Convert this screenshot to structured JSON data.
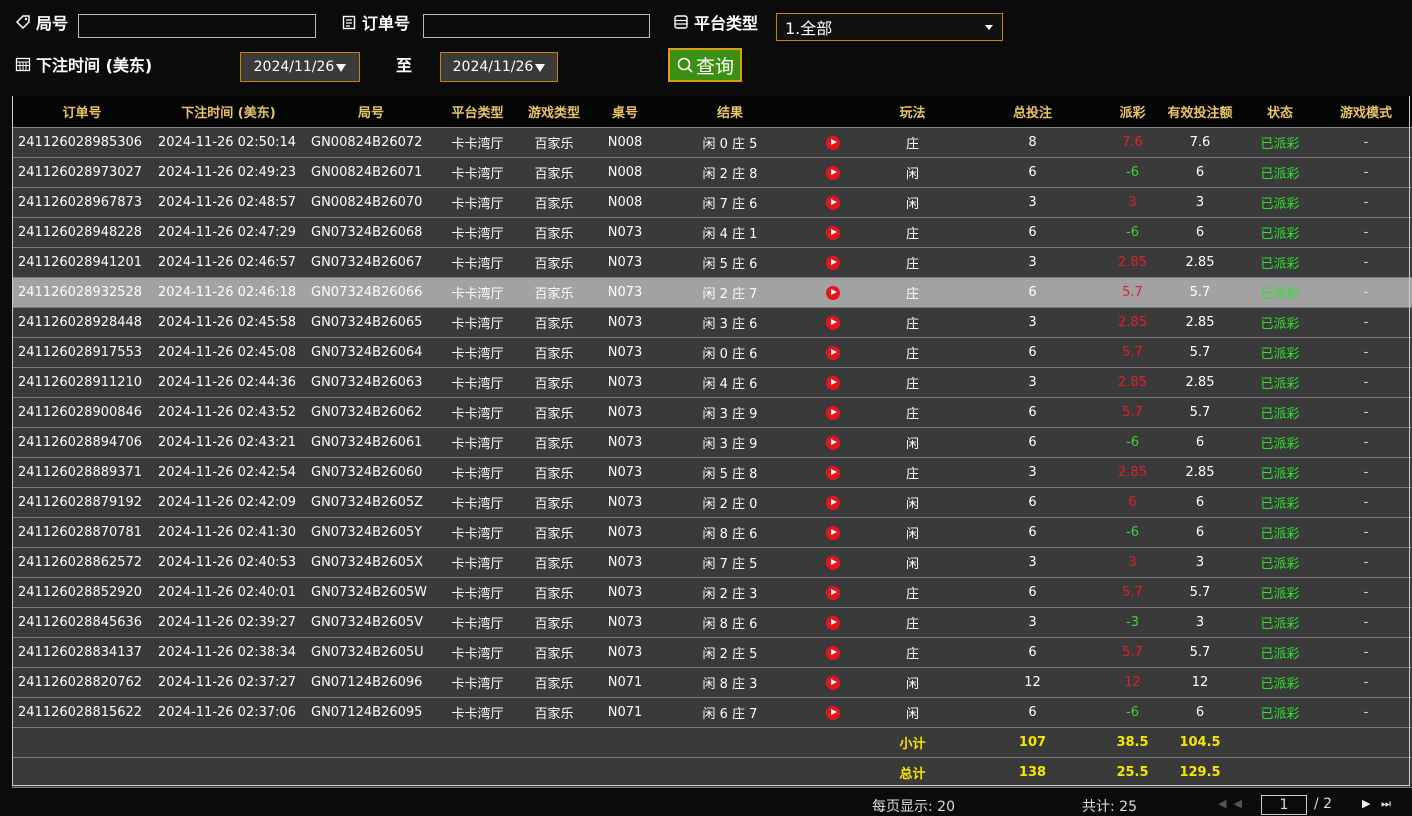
{
  "filters": {
    "round_label": "局号",
    "order_label": "订单号",
    "platform_label": "平台类型",
    "platform_value": "1.全部",
    "time_label": "下注时间 (美东)",
    "date_from": "2024/11/26",
    "to_label": "至",
    "date_to": "2024/11/26",
    "search_button": "查询"
  },
  "table": {
    "headers": [
      "订单号",
      "下注时间 (美东)",
      "局号",
      "平台类型",
      "游戏类型",
      "桌号",
      "结果",
      "玩法",
      "总投注",
      "派彩",
      "有效投注额",
      "状态",
      "游戏模式"
    ],
    "rows": [
      [
        "241126028985306",
        "2024-11-26 02:50:14",
        "GN00824B26072",
        "卡卡湾厅",
        "百家乐",
        "N008",
        "闲 0 庄 5",
        "庄",
        8,
        7.6,
        7.6,
        "已派彩",
        "-"
      ],
      [
        "241126028973027",
        "2024-11-26 02:49:23",
        "GN00824B26071",
        "卡卡湾厅",
        "百家乐",
        "N008",
        "闲 2 庄 8",
        "闲",
        6,
        -6,
        6,
        "已派彩",
        "-"
      ],
      [
        "241126028967873",
        "2024-11-26 02:48:57",
        "GN00824B26070",
        "卡卡湾厅",
        "百家乐",
        "N008",
        "闲 7 庄 6",
        "闲",
        3,
        3,
        3,
        "已派彩",
        "-"
      ],
      [
        "241126028948228",
        "2024-11-26 02:47:29",
        "GN07324B26068",
        "卡卡湾厅",
        "百家乐",
        "N073",
        "闲 4 庄 1",
        "庄",
        6,
        -6,
        6,
        "已派彩",
        "-"
      ],
      [
        "241126028941201",
        "2024-11-26 02:46:57",
        "GN07324B26067",
        "卡卡湾厅",
        "百家乐",
        "N073",
        "闲 5 庄 6",
        "庄",
        3,
        2.85,
        2.85,
        "已派彩",
        "-"
      ],
      [
        "241126028932528",
        "2024-11-26 02:46:18",
        "GN07324B26066",
        "卡卡湾厅",
        "百家乐",
        "N073",
        "闲 2 庄 7",
        "庄",
        6,
        5.7,
        5.7,
        "已派彩",
        "-"
      ],
      [
        "241126028928448",
        "2024-11-26 02:45:58",
        "GN07324B26065",
        "卡卡湾厅",
        "百家乐",
        "N073",
        "闲 3 庄 6",
        "庄",
        3,
        2.85,
        2.85,
        "已派彩",
        "-"
      ],
      [
        "241126028917553",
        "2024-11-26 02:45:08",
        "GN07324B26064",
        "卡卡湾厅",
        "百家乐",
        "N073",
        "闲 0 庄 6",
        "庄",
        6,
        5.7,
        5.7,
        "已派彩",
        "-"
      ],
      [
        "241126028911210",
        "2024-11-26 02:44:36",
        "GN07324B26063",
        "卡卡湾厅",
        "百家乐",
        "N073",
        "闲 4 庄 6",
        "庄",
        3,
        2.85,
        2.85,
        "已派彩",
        "-"
      ],
      [
        "241126028900846",
        "2024-11-26 02:43:52",
        "GN07324B26062",
        "卡卡湾厅",
        "百家乐",
        "N073",
        "闲 3 庄 9",
        "庄",
        6,
        5.7,
        5.7,
        "已派彩",
        "-"
      ],
      [
        "241126028894706",
        "2024-11-26 02:43:21",
        "GN07324B26061",
        "卡卡湾厅",
        "百家乐",
        "N073",
        "闲 3 庄 9",
        "闲",
        6,
        -6,
        6,
        "已派彩",
        "-"
      ],
      [
        "241126028889371",
        "2024-11-26 02:42:54",
        "GN07324B26060",
        "卡卡湾厅",
        "百家乐",
        "N073",
        "闲 5 庄 8",
        "庄",
        3,
        2.85,
        2.85,
        "已派彩",
        "-"
      ],
      [
        "241126028879192",
        "2024-11-26 02:42:09",
        "GN07324B2605Z",
        "卡卡湾厅",
        "百家乐",
        "N073",
        "闲 2 庄 0",
        "闲",
        6,
        6,
        6,
        "已派彩",
        "-"
      ],
      [
        "241126028870781",
        "2024-11-26 02:41:30",
        "GN07324B2605Y",
        "卡卡湾厅",
        "百家乐",
        "N073",
        "闲 8 庄 6",
        "闲",
        6,
        -6,
        6,
        "已派彩",
        "-"
      ],
      [
        "241126028862572",
        "2024-11-26 02:40:53",
        "GN07324B2605X",
        "卡卡湾厅",
        "百家乐",
        "N073",
        "闲 7 庄 5",
        "闲",
        3,
        3,
        3,
        "已派彩",
        "-"
      ],
      [
        "241126028852920",
        "2024-11-26 02:40:01",
        "GN07324B2605W",
        "卡卡湾厅",
        "百家乐",
        "N073",
        "闲 2 庄 3",
        "庄",
        6,
        5.7,
        5.7,
        "已派彩",
        "-"
      ],
      [
        "241126028845636",
        "2024-11-26 02:39:27",
        "GN07324B2605V",
        "卡卡湾厅",
        "百家乐",
        "N073",
        "闲 8 庄 6",
        "庄",
        3,
        -3,
        3,
        "已派彩",
        "-"
      ],
      [
        "241126028834137",
        "2024-11-26 02:38:34",
        "GN07324B2605U",
        "卡卡湾厅",
        "百家乐",
        "N073",
        "闲 2 庄 5",
        "庄",
        6,
        5.7,
        5.7,
        "已派彩",
        "-"
      ],
      [
        "241126028820762",
        "2024-11-26 02:37:27",
        "GN07124B26096",
        "卡卡湾厅",
        "百家乐",
        "N071",
        "闲 8 庄 3",
        "闲",
        12,
        12,
        12,
        "已派彩",
        "-"
      ],
      [
        "241126028815622",
        "2024-11-26 02:37:06",
        "GN07124B26095",
        "卡卡湾厅",
        "百家乐",
        "N071",
        "闲 6 庄 7",
        "闲",
        6,
        -6,
        6,
        "已派彩",
        "-"
      ]
    ],
    "subtotal": {
      "label": "小计",
      "total": 107,
      "payout": 38.5,
      "valid": 104.5
    },
    "grand_total": {
      "label": "总计",
      "total": 138,
      "payout": 25.5,
      "valid": 129.5
    }
  },
  "footer": {
    "page_size": "每页显示: 20",
    "count": "共计: 25",
    "page": "1",
    "pages": "/ 2"
  }
}
